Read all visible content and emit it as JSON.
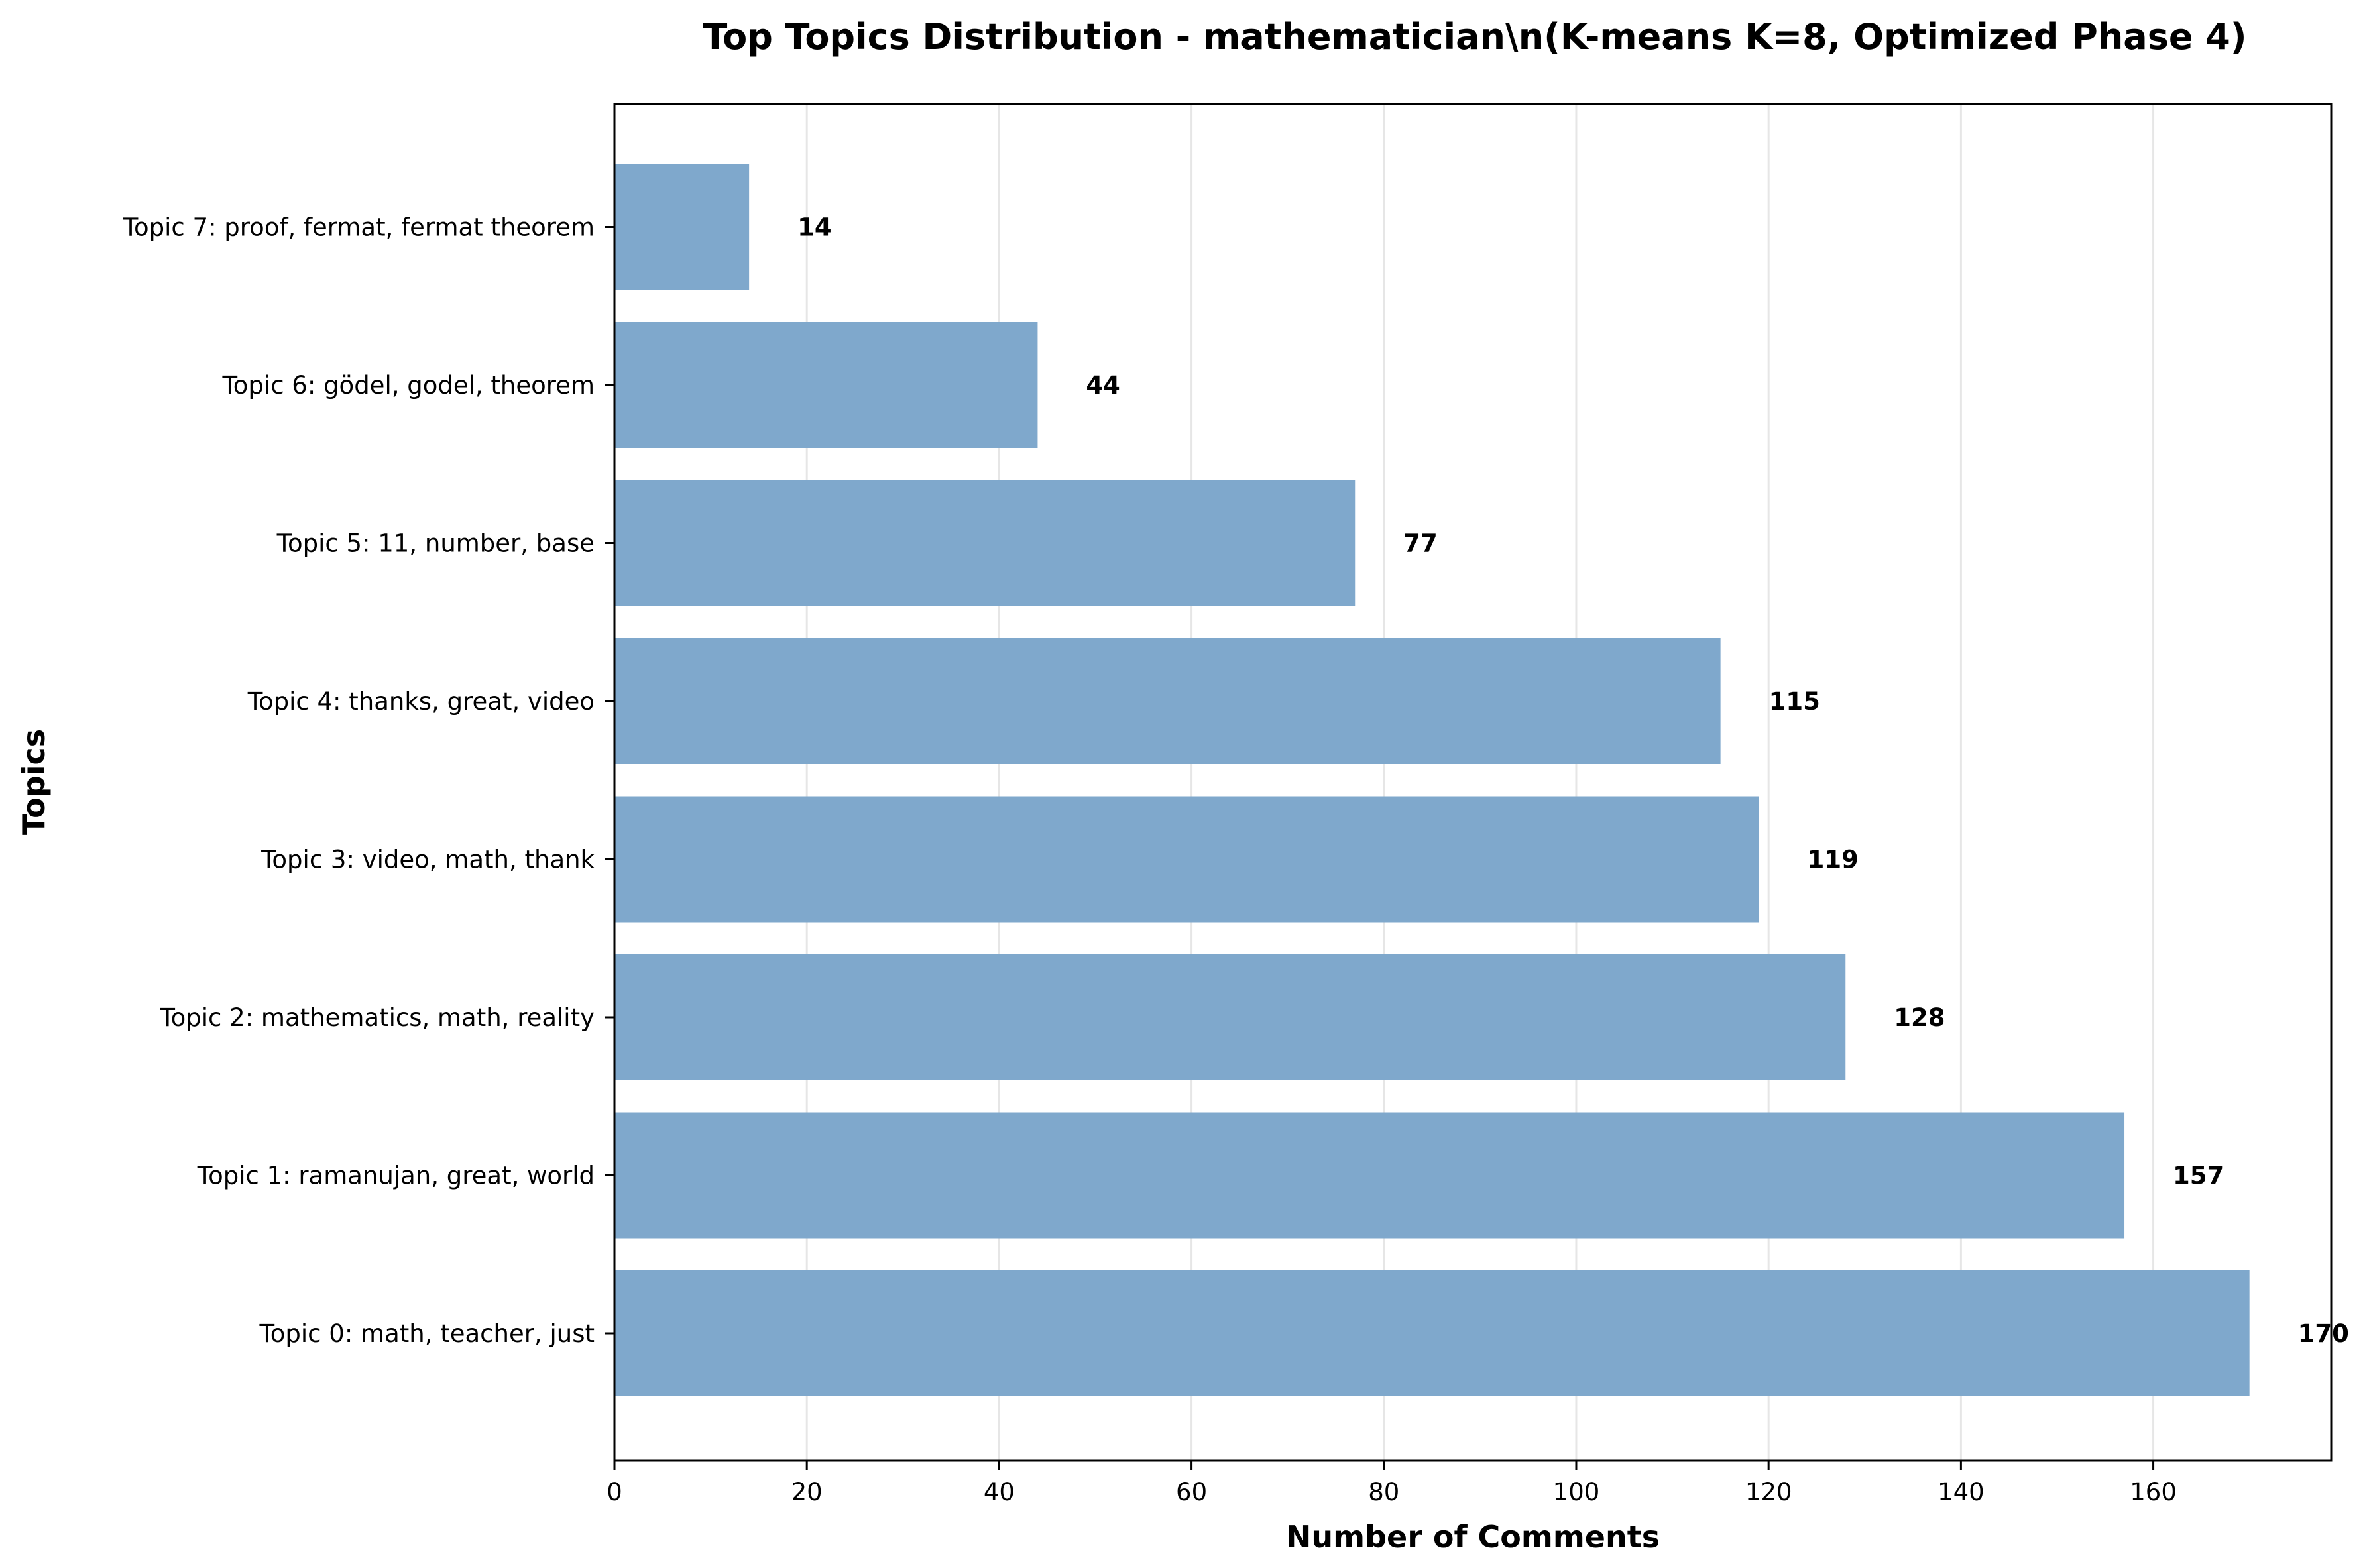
{
  "chart_data": {
    "type": "bar",
    "orientation": "horizontal",
    "title": "Top Topics Distribution - mathematician\\n(K-means K=8, Optimized Phase 4)",
    "xlabel": "Number of Comments",
    "ylabel": "Topics",
    "categories": [
      "Topic 0: math, teacher, just",
      "Topic 1: ramanujan, great, world",
      "Topic 2: mathematics, math, reality",
      "Topic 3: video, math, thank",
      "Topic 4: thanks, great, video",
      "Topic 5: 11, number, base",
      "Topic 6: gödel, godel, theorem",
      "Topic 7: proof, fermat, fermat theorem"
    ],
    "values": [
      170,
      157,
      128,
      119,
      115,
      77,
      44,
      14
    ],
    "data_labels": [
      "170",
      "157",
      "128",
      "119",
      "115",
      "77",
      "44",
      "14"
    ],
    "xlim": [
      0,
      178.5
    ],
    "xticks": [
      0,
      20,
      40,
      60,
      80,
      100,
      120,
      140,
      160
    ],
    "xtick_labels": [
      "0",
      "20",
      "40",
      "60",
      "80",
      "100",
      "120",
      "140",
      "160"
    ],
    "grid": "vertical",
    "bar_color": "#7fa8cc",
    "grid_color": "#e6e6e6",
    "legend": "none"
  }
}
